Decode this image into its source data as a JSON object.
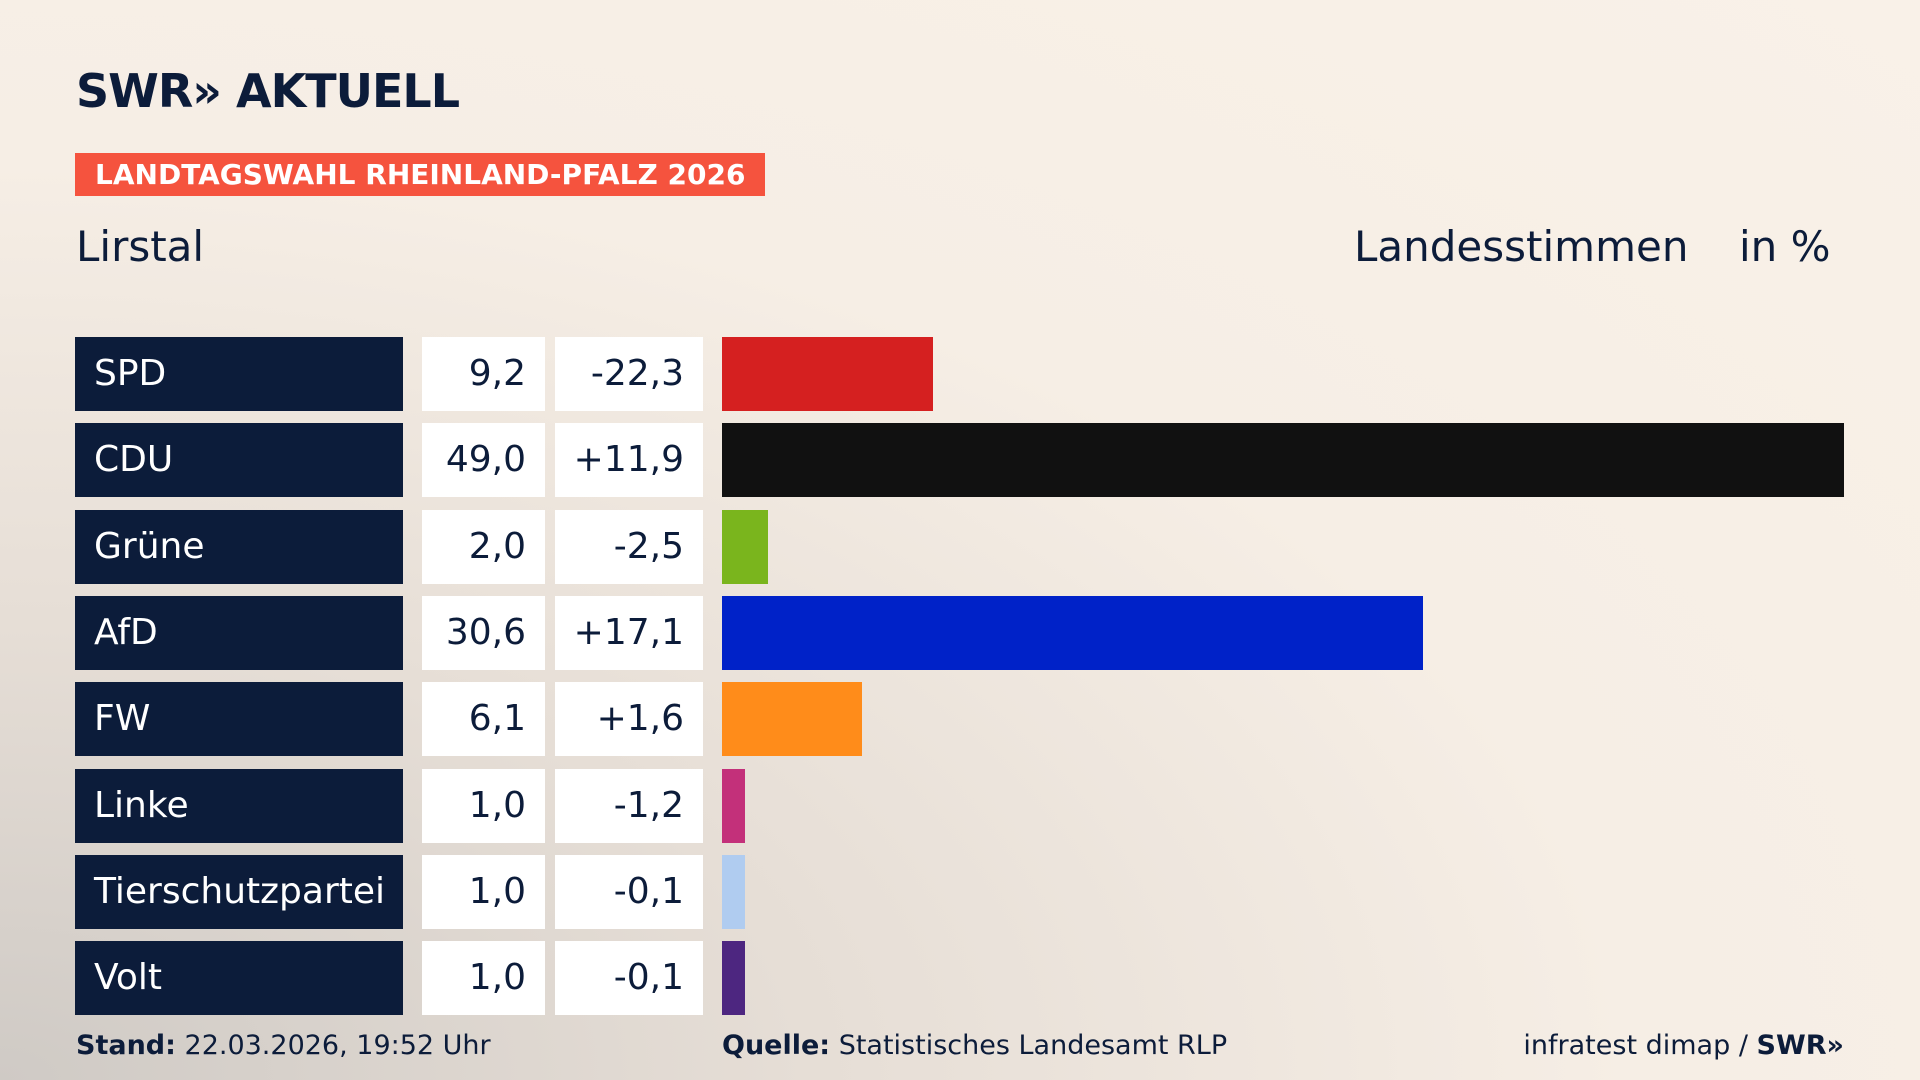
{
  "header": {
    "logo": "SWR» AKTUELL",
    "badge": "LANDTAGSWAHL RHEINLAND-PFALZ 2026",
    "place": "Lirstal",
    "measure": "Landesstimmen",
    "unit": "in %"
  },
  "chart_data": {
    "type": "bar",
    "categories": [
      "SPD",
      "CDU",
      "Grüne",
      "AfD",
      "FW",
      "Linke",
      "Tierschutzpartei",
      "Volt"
    ],
    "values": [
      9.2,
      49.0,
      2.0,
      30.6,
      6.1,
      1.0,
      1.0,
      1.0
    ],
    "value_labels": [
      "9,2",
      "49,0",
      "2,0",
      "30,6",
      "6,1",
      "1,0",
      "1,0",
      "1,0"
    ],
    "changes": [
      "-22,3",
      "+11,9",
      "-2,5",
      "+17,1",
      "+1,6",
      "-1,2",
      "-0,1",
      "-0,1"
    ],
    "colors": [
      "#d52020",
      "#111111",
      "#7ab51d",
      "#0022c8",
      "#ff8c1a",
      "#c3307a",
      "#b0ccf0",
      "#4d2680"
    ]
  },
  "footer": {
    "stand_label": "Stand:",
    "stand": "22.03.2026, 19:52 Uhr",
    "source_label": "Quelle:",
    "source": "Statistisches Landesamt RLP",
    "credit": "infratest dimap /",
    "credit_logo": "SWR»"
  }
}
